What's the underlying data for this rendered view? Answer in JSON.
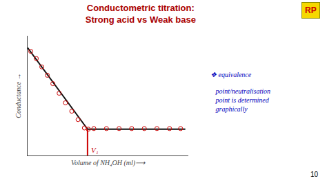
{
  "chart_data": {
    "type": "line",
    "title": "Conductometric titration:",
    "subtitle": "Strong acid vs Weak base",
    "title_color": "#aa0000",
    "xlabel": "Volume of NH₄OH (ml)⟶",
    "ylabel": "Conductance →",
    "xlim": [
      0,
      10.2
    ],
    "ylim": [
      0,
      1.0
    ],
    "xticks": [],
    "yticks": [],
    "tick_labels": false,
    "grid": false,
    "series": [
      {
        "type": "line",
        "color": "#111111",
        "line_style": "solid",
        "x": [
          0,
          3.8
        ],
        "values": [
          0.9,
          0.22
        ]
      },
      {
        "type": "line",
        "color": "#111111",
        "line_style": "solid",
        "x": [
          3.8,
          10.0
        ],
        "values": [
          0.22,
          0.22
        ]
      },
      {
        "type": "scatter",
        "color": "#cc0000",
        "marker": "circle-open",
        "x": [
          0.2,
          0.55,
          0.9,
          1.25,
          1.6,
          2.0,
          2.4,
          2.8,
          3.2,
          3.6,
          3.85
        ],
        "values": [
          0.87,
          0.81,
          0.74,
          0.67,
          0.6,
          0.52,
          0.44,
          0.37,
          0.3,
          0.23,
          0.22
        ]
      },
      {
        "type": "scatter",
        "color": "#cc0000",
        "marker": "circle-open",
        "x": [
          4.2,
          5.0,
          5.8,
          6.6,
          7.4,
          8.2,
          9.0,
          9.7
        ],
        "values": [
          0.225,
          0.225,
          0.225,
          0.225,
          0.225,
          0.225,
          0.225,
          0.225
        ]
      },
      {
        "type": "line",
        "color": "#cc0000",
        "line_style": "solid",
        "x": [
          3.8,
          3.8
        ],
        "values": [
          0.0,
          0.22
        ]
      }
    ],
    "annotations": [
      {
        "text": "V₁",
        "x": 3.8,
        "y": 0.0,
        "color": "#cc0000"
      },
      {
        "text": "❖ equivalence",
        "color": "#0000bb"
      },
      {
        "text": "   point/neutralisation\n   point is determined\n   graphically",
        "color": "#0000bb"
      },
      {
        "text": "RP",
        "color": "#cc0000"
      },
      {
        "text": "10",
        "color": "#000000"
      }
    ]
  }
}
